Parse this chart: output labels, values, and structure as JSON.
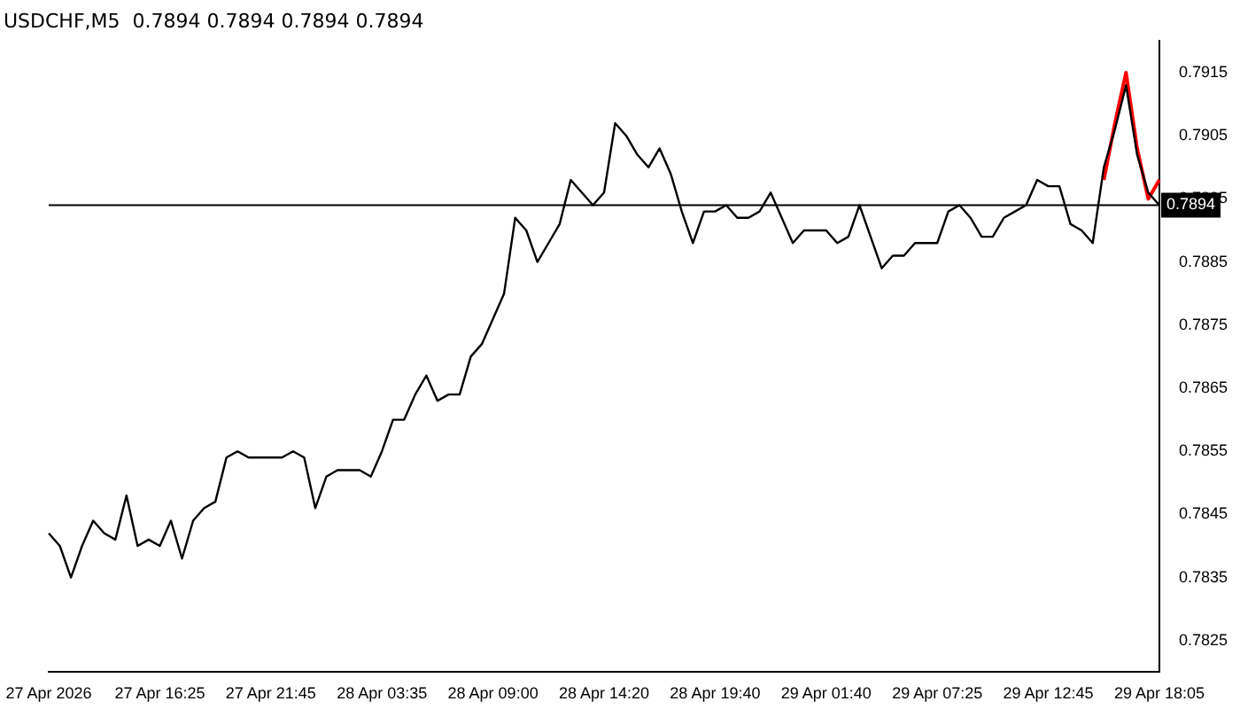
{
  "chart_data": {
    "type": "line",
    "title": "USDCHF,M5  0.7894 0.7894 0.7894 0.7894",
    "categories": [
      "27 Apr 2026",
      null,
      null,
      null,
      null,
      null,
      null,
      null,
      null,
      null,
      "27 Apr 16:25",
      null,
      null,
      null,
      null,
      null,
      null,
      null,
      null,
      null,
      "27 Apr 21:45",
      null,
      null,
      null,
      null,
      null,
      null,
      null,
      null,
      null,
      "28 Apr 03:35",
      null,
      null,
      null,
      null,
      null,
      null,
      null,
      null,
      null,
      "28 Apr 09:00",
      null,
      null,
      null,
      null,
      null,
      null,
      null,
      null,
      null,
      "28 Apr 14:20",
      null,
      null,
      null,
      null,
      null,
      null,
      null,
      null,
      null,
      "28 Apr 19:40",
      null,
      null,
      null,
      null,
      null,
      null,
      null,
      null,
      null,
      "29 Apr 01:40",
      null,
      null,
      null,
      null,
      null,
      null,
      null,
      null,
      null,
      "29 Apr 07:25",
      null,
      null,
      null,
      null,
      null,
      null,
      null,
      null,
      null,
      "29 Apr 12:45",
      null,
      null,
      null,
      null,
      null,
      null,
      null,
      null,
      null,
      "29 Apr 18:05"
    ],
    "series": [
      {
        "color": "#000000",
        "values": [
          0.7842,
          0.784,
          0.7835,
          0.784,
          0.7844,
          0.7842,
          0.7841,
          0.7848,
          0.784,
          0.7841,
          0.784,
          0.7844,
          0.7838,
          0.7844,
          0.7846,
          0.7847,
          0.7854,
          0.7855,
          0.7854,
          0.7854,
          0.7854,
          0.7854,
          0.7855,
          0.7854,
          0.7846,
          0.7851,
          0.7852,
          0.7852,
          0.7852,
          0.7851,
          0.7855,
          0.786,
          0.786,
          0.7864,
          0.7867,
          0.7863,
          0.7864,
          0.7864,
          0.787,
          0.7872,
          0.7876,
          0.788,
          0.7892,
          0.789,
          0.7885,
          0.7888,
          0.7891,
          0.7898,
          0.7896,
          0.7894,
          0.7896,
          0.7907,
          0.7905,
          0.7902,
          0.79,
          0.7903,
          0.7899,
          0.7893,
          0.7888,
          0.7893,
          0.7893,
          0.7894,
          0.7892,
          0.7892,
          0.7893,
          0.7896,
          0.7892,
          0.7888,
          0.789,
          0.789,
          0.789,
          0.7888,
          0.7889,
          0.7894,
          0.7889,
          0.7884,
          0.7886,
          0.7886,
          0.7888,
          0.7888,
          0.7888,
          0.7893,
          0.7894,
          0.7892,
          0.7889,
          0.7889,
          0.7892,
          0.7893,
          0.7894,
          0.7898,
          0.7897,
          0.7897,
          0.7891,
          0.789,
          0.7888,
          0.79,
          0.7906,
          0.7913,
          0.7902,
          0.7896,
          0.7894
        ]
      },
      {
        "color": "#ff0000",
        "values": [
          null,
          null,
          null,
          null,
          null,
          null,
          null,
          null,
          null,
          null,
          null,
          null,
          null,
          null,
          null,
          null,
          null,
          null,
          null,
          null,
          null,
          null,
          null,
          null,
          null,
          null,
          null,
          null,
          null,
          null,
          null,
          null,
          null,
          null,
          null,
          null,
          null,
          null,
          null,
          null,
          null,
          null,
          null,
          null,
          null,
          null,
          null,
          null,
          null,
          null,
          null,
          null,
          null,
          null,
          null,
          null,
          null,
          null,
          null,
          null,
          null,
          null,
          null,
          null,
          null,
          null,
          null,
          null,
          null,
          null,
          null,
          null,
          null,
          null,
          null,
          null,
          null,
          null,
          null,
          null,
          null,
          null,
          null,
          null,
          null,
          null,
          null,
          null,
          null,
          null,
          null,
          null,
          null,
          null,
          null,
          0.7898,
          0.7907,
          0.7915,
          0.7903,
          0.7895,
          0.7898
        ]
      }
    ],
    "ylim": [
      0.782,
      0.792
    ],
    "yticks": [
      0.7825,
      0.7835,
      0.7845,
      0.7855,
      0.7865,
      0.7875,
      0.7885,
      0.7895,
      0.7905,
      0.7915
    ],
    "ref_lines": [
      {
        "axis": "y",
        "value": 0.7894,
        "label": "0.7894",
        "color": "#000000"
      }
    ],
    "grid": false,
    "legend": false,
    "marker": "none",
    "line_style": "solid"
  }
}
